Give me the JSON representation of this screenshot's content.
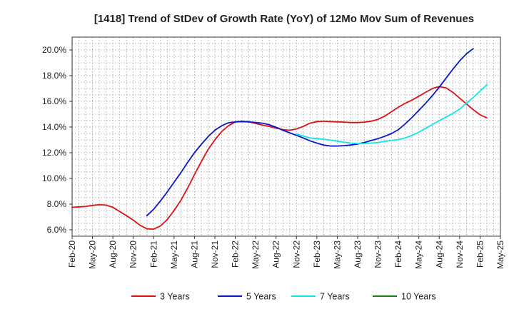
{
  "chart_data": {
    "type": "line",
    "title": "[1418]  Trend of StDev of Growth Rate (YoY) of 12Mo Mov Sum of Revenues",
    "xlabel": "",
    "ylabel": "",
    "x_start": "2020-02",
    "x_end": "2025-05",
    "x_tick_labels": [
      "Feb-20",
      "May-20",
      "Aug-20",
      "Nov-20",
      "Feb-21",
      "May-21",
      "Aug-21",
      "Nov-21",
      "Feb-22",
      "May-22",
      "Aug-22",
      "Nov-22",
      "Feb-23",
      "May-23",
      "Aug-23",
      "Nov-23",
      "Feb-24",
      "May-24",
      "Aug-24",
      "Nov-24",
      "Feb-25",
      "May-25"
    ],
    "ylim": [
      5.5,
      21.0
    ],
    "y_ticks": [
      6.0,
      8.0,
      10.0,
      12.0,
      14.0,
      16.0,
      18.0,
      20.0
    ],
    "y_tick_labels": [
      "6.0%",
      "8.0%",
      "10.0%",
      "12.0%",
      "14.0%",
      "16.0%",
      "18.0%",
      "20.0%"
    ],
    "grid": true,
    "legend_position": "bottom",
    "series": [
      {
        "name": "3 Years",
        "color": "#dd1111",
        "start": "2020-02",
        "values": [
          7.75,
          7.78,
          7.82,
          7.9,
          7.95,
          7.92,
          7.75,
          7.42,
          7.1,
          6.75,
          6.35,
          6.08,
          6.05,
          6.3,
          6.8,
          7.5,
          8.3,
          9.25,
          10.3,
          11.3,
          12.25,
          13.0,
          13.65,
          14.1,
          14.4,
          14.45,
          14.4,
          14.28,
          14.15,
          14.05,
          13.92,
          13.8,
          13.75,
          13.85,
          14.05,
          14.3,
          14.42,
          14.45,
          14.42,
          14.4,
          14.38,
          14.35,
          14.35,
          14.38,
          14.45,
          14.6,
          14.85,
          15.2,
          15.55,
          15.85,
          16.1,
          16.4,
          16.7,
          17.0,
          17.15,
          17.05,
          16.7,
          16.25,
          15.8,
          15.35,
          14.95,
          14.72
        ]
      },
      {
        "name": "5 Years",
        "color": "#0b16c5",
        "start": "2021-01",
        "values": [
          7.1,
          7.6,
          8.25,
          8.95,
          9.7,
          10.45,
          11.25,
          12.0,
          12.65,
          13.25,
          13.75,
          14.1,
          14.33,
          14.4,
          14.42,
          14.4,
          14.35,
          14.3,
          14.18,
          13.98,
          13.75,
          13.55,
          13.35,
          13.15,
          12.92,
          12.75,
          12.6,
          12.52,
          12.52,
          12.55,
          12.6,
          12.68,
          12.8,
          12.95,
          13.1,
          13.28,
          13.5,
          13.8,
          14.25,
          14.75,
          15.3,
          15.85,
          16.45,
          17.1,
          17.8,
          18.5,
          19.15,
          19.7,
          20.1
        ]
      },
      {
        "name": "7 Years",
        "color": "#11e6e6",
        "start": "2022-11",
        "values": [
          13.45,
          13.3,
          13.15,
          13.1,
          13.05,
          12.98,
          12.9,
          12.82,
          12.75,
          12.72,
          12.72,
          12.75,
          12.8,
          12.88,
          12.95,
          13.03,
          13.15,
          13.35,
          13.6,
          13.9,
          14.2,
          14.5,
          14.78,
          15.05,
          15.4,
          15.85,
          16.3,
          16.8,
          17.3
        ]
      },
      {
        "name": "10 Years",
        "color": "#1a7d1a",
        "start": "2025-02",
        "values": []
      }
    ]
  }
}
